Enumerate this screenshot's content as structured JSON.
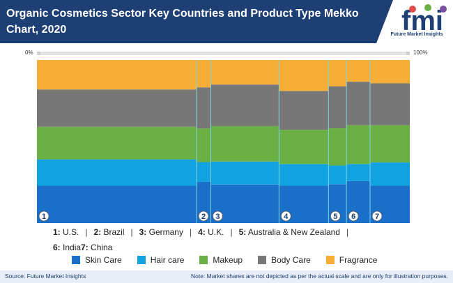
{
  "header": {
    "title": "Organic Cosmetics Sector Key Countries and Product Type Mekko Chart, 2020",
    "logo_text": "Future Market Insights",
    "logo_mark": "fmi"
  },
  "scale": {
    "left_label": "0%",
    "right_label": "100%"
  },
  "country_legend": [
    {
      "num": "1:",
      "name": "U.S."
    },
    {
      "num": "2:",
      "name": "Brazil"
    },
    {
      "num": "3:",
      "name": "Germany"
    },
    {
      "num": "4:",
      "name": "U.K."
    },
    {
      "num": "5:",
      "name": "Australia & New Zealand"
    },
    {
      "num": "6:",
      "name": "India"
    },
    {
      "num": "7:",
      "name": "China"
    }
  ],
  "chart_data": {
    "type": "mekko",
    "categories": [
      "1",
      "2",
      "3",
      "4",
      "5",
      "6",
      "7"
    ],
    "widths": [
      42.6,
      3.8,
      18.2,
      13.2,
      4.8,
      6.3,
      10.6
    ],
    "series": [
      {
        "name": "Skin Care",
        "color": "#1a6fc9",
        "values": [
          24,
          27,
          25,
          24,
          25,
          27,
          24
        ]
      },
      {
        "name": "Hair care",
        "color": "#13a2e0",
        "values": [
          17,
          13,
          15,
          14,
          12,
          11,
          15
        ]
      },
      {
        "name": "Makeup",
        "color": "#6ab045",
        "values": [
          21,
          22,
          23,
          22,
          24,
          25,
          24
        ]
      },
      {
        "name": "Body Care",
        "color": "#777777",
        "values": [
          24,
          27,
          27,
          25,
          27,
          28,
          27
        ]
      },
      {
        "name": "Fragrance",
        "color": "#f7ae38",
        "values": [
          19,
          18,
          16,
          20,
          17,
          14,
          15
        ]
      }
    ],
    "ylim": [
      0,
      100
    ],
    "legend": "bottom"
  },
  "footer": {
    "source": "Source: Future Market Insights",
    "note": "Note: Market shares are not depicted as per the actual scale and are only for illustration purposes."
  }
}
